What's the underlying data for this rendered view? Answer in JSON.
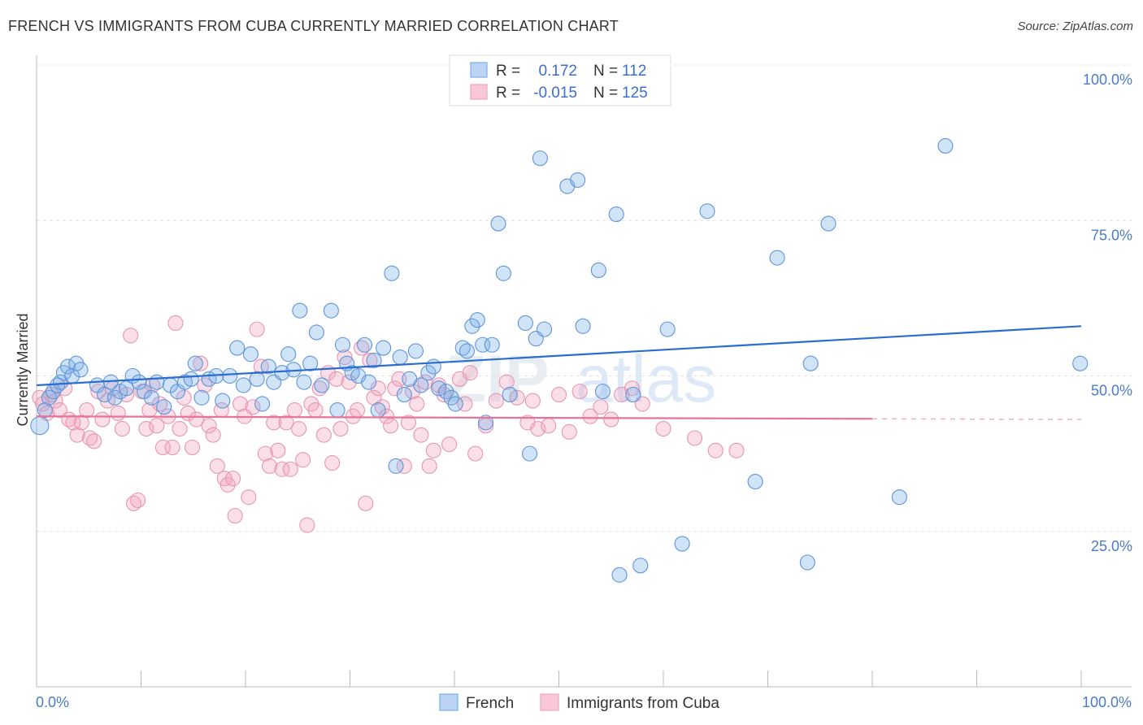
{
  "title": "FRENCH VS IMMIGRANTS FROM CUBA CURRENTLY MARRIED CORRELATION CHART",
  "source": "Source: ZipAtlas.com",
  "watermark": {
    "zip": "ZIP",
    "atlas": "atlas"
  },
  "colors": {
    "french": "#7aaee8",
    "cuba": "#f2a3bd",
    "french_line": "#2a6dd0",
    "cuba_line": "#e8739a"
  },
  "legend_top": [
    {
      "r_label": "R =",
      "r_value": "0.172",
      "n_label": "N =",
      "n_value": "112"
    },
    {
      "r_label": "R =",
      "r_value": "-0.015",
      "n_label": "N =",
      "n_value": "125"
    }
  ],
  "legend_bottom": [
    "French",
    "Immigrants from Cuba"
  ],
  "chart_data": {
    "type": "scatter",
    "title": "FRENCH VS IMMIGRANTS FROM CUBA CURRENTLY MARRIED CORRELATION CHART",
    "xlabel": "",
    "ylabel": "Currently Married",
    "xlim": [
      0,
      100
    ],
    "ylim": [
      0,
      100
    ],
    "x_tick_labels": [
      "0.0%",
      "100.0%"
    ],
    "y_tick_labels": [
      "100.0%",
      "75.0%",
      "50.0%",
      "25.0%"
    ],
    "y_ticks": [
      100,
      75,
      50,
      25
    ],
    "grid": true,
    "legend_position": "top-center",
    "series": [
      {
        "name": "French",
        "trend": {
          "x": [
            0,
            100
          ],
          "y": [
            48.5,
            58.0
          ]
        },
        "points": [
          [
            0.3,
            42.0
          ],
          [
            0.8,
            44.5
          ],
          [
            1.2,
            46.5
          ],
          [
            1.6,
            47.5
          ],
          [
            2.0,
            48.5
          ],
          [
            2.3,
            49.0
          ],
          [
            2.6,
            50.5
          ],
          [
            3.0,
            51.5
          ],
          [
            3.4,
            50.0
          ],
          [
            3.8,
            52.0
          ],
          [
            4.2,
            51.0
          ],
          [
            5.8,
            48.5
          ],
          [
            6.5,
            47.0
          ],
          [
            7.1,
            49.0
          ],
          [
            7.5,
            46.5
          ],
          [
            8.0,
            47.5
          ],
          [
            8.6,
            48.0
          ],
          [
            9.2,
            50.0
          ],
          [
            9.8,
            49.0
          ],
          [
            10.3,
            47.5
          ],
          [
            11.0,
            46.5
          ],
          [
            11.5,
            49.0
          ],
          [
            12.2,
            45.0
          ],
          [
            12.8,
            48.5
          ],
          [
            13.5,
            47.5
          ],
          [
            14.2,
            49.0
          ],
          [
            14.8,
            49.5
          ],
          [
            15.2,
            52.0
          ],
          [
            15.8,
            46.5
          ],
          [
            16.5,
            49.5
          ],
          [
            17.2,
            50.0
          ],
          [
            17.8,
            46.0
          ],
          [
            18.5,
            50.0
          ],
          [
            19.2,
            54.5
          ],
          [
            19.8,
            48.5
          ],
          [
            20.5,
            53.5
          ],
          [
            21.1,
            49.5
          ],
          [
            21.6,
            45.5
          ],
          [
            22.2,
            51.5
          ],
          [
            22.7,
            49.0
          ],
          [
            23.5,
            50.5
          ],
          [
            24.1,
            53.5
          ],
          [
            24.6,
            51.0
          ],
          [
            25.2,
            60.5
          ],
          [
            25.6,
            49.0
          ],
          [
            26.2,
            52.0
          ],
          [
            26.8,
            57.0
          ],
          [
            27.3,
            48.5
          ],
          [
            28.2,
            60.5
          ],
          [
            28.8,
            44.5
          ],
          [
            29.3,
            55.0
          ],
          [
            29.7,
            52.0
          ],
          [
            30.2,
            50.5
          ],
          [
            30.8,
            50.0
          ],
          [
            31.4,
            55.0
          ],
          [
            31.8,
            49.0
          ],
          [
            32.3,
            52.5
          ],
          [
            32.7,
            44.5
          ],
          [
            33.2,
            54.5
          ],
          [
            34.0,
            66.5
          ],
          [
            34.4,
            35.5
          ],
          [
            34.8,
            53.0
          ],
          [
            35.2,
            47.0
          ],
          [
            35.7,
            49.5
          ],
          [
            36.3,
            54.0
          ],
          [
            36.8,
            48.5
          ],
          [
            37.5,
            50.5
          ],
          [
            38.0,
            51.5
          ],
          [
            38.5,
            48.0
          ],
          [
            39.2,
            47.5
          ],
          [
            39.7,
            46.5
          ],
          [
            40.1,
            45.5
          ],
          [
            40.8,
            54.5
          ],
          [
            41.2,
            54.0
          ],
          [
            41.7,
            58.0
          ],
          [
            42.2,
            59.0
          ],
          [
            42.7,
            55.0
          ],
          [
            43.0,
            42.5
          ],
          [
            43.6,
            55.0
          ],
          [
            44.2,
            74.5
          ],
          [
            44.7,
            66.5
          ],
          [
            45.3,
            47.0
          ],
          [
            46.8,
            58.5
          ],
          [
            47.2,
            37.5
          ],
          [
            47.8,
            56.0
          ],
          [
            48.2,
            85.0
          ],
          [
            48.6,
            57.5
          ],
          [
            50.8,
            80.5
          ],
          [
            51.8,
            81.5
          ],
          [
            52.3,
            58.0
          ],
          [
            53.8,
            67.0
          ],
          [
            54.2,
            47.5
          ],
          [
            55.5,
            76.0
          ],
          [
            55.8,
            18.0
          ],
          [
            57.1,
            47.0
          ],
          [
            57.8,
            19.5
          ],
          [
            60.4,
            57.5
          ],
          [
            61.8,
            23.0
          ],
          [
            64.2,
            76.5
          ],
          [
            68.8,
            33.0
          ],
          [
            70.9,
            69.0
          ],
          [
            73.8,
            20.0
          ],
          [
            74.1,
            52.0
          ],
          [
            75.8,
            74.5
          ],
          [
            82.6,
            30.5
          ],
          [
            87.0,
            87.0
          ],
          [
            99.9,
            52.0
          ]
        ]
      },
      {
        "name": "Immigrants from Cuba",
        "trend": {
          "x": [
            0,
            80
          ],
          "y": [
            43.5,
            43.1
          ]
        },
        "points": [
          [
            0.3,
            46.5
          ],
          [
            0.6,
            45.5
          ],
          [
            1.0,
            44.0
          ],
          [
            1.4,
            47.0
          ],
          [
            1.8,
            46.0
          ],
          [
            2.2,
            44.5
          ],
          [
            2.7,
            48.0
          ],
          [
            3.1,
            43.0
          ],
          [
            3.5,
            42.5
          ],
          [
            3.9,
            40.5
          ],
          [
            4.3,
            42.5
          ],
          [
            4.8,
            44.5
          ],
          [
            5.1,
            40.0
          ],
          [
            5.5,
            39.5
          ],
          [
            5.9,
            47.5
          ],
          [
            6.3,
            43.0
          ],
          [
            6.8,
            46.0
          ],
          [
            7.3,
            48.0
          ],
          [
            7.8,
            44.0
          ],
          [
            8.2,
            41.5
          ],
          [
            8.6,
            47.0
          ],
          [
            9.0,
            56.5
          ],
          [
            9.3,
            29.5
          ],
          [
            9.7,
            30.0
          ],
          [
            10.1,
            47.5
          ],
          [
            10.5,
            41.5
          ],
          [
            10.8,
            44.5
          ],
          [
            11.1,
            48.5
          ],
          [
            11.5,
            42.0
          ],
          [
            11.8,
            45.5
          ],
          [
            12.1,
            38.5
          ],
          [
            12.6,
            43.5
          ],
          [
            13.0,
            38.5
          ],
          [
            13.3,
            58.5
          ],
          [
            13.7,
            41.5
          ],
          [
            14.1,
            46.5
          ],
          [
            14.5,
            44.0
          ],
          [
            14.9,
            38.5
          ],
          [
            15.3,
            43.0
          ],
          [
            15.7,
            52.0
          ],
          [
            16.1,
            48.5
          ],
          [
            16.5,
            42.0
          ],
          [
            16.9,
            40.5
          ],
          [
            17.3,
            35.5
          ],
          [
            17.7,
            44.5
          ],
          [
            18.0,
            33.5
          ],
          [
            18.3,
            32.5
          ],
          [
            18.8,
            33.5
          ],
          [
            19.0,
            27.5
          ],
          [
            19.5,
            45.5
          ],
          [
            19.9,
            43.5
          ],
          [
            20.3,
            30.5
          ],
          [
            20.7,
            45.0
          ],
          [
            21.1,
            57.5
          ],
          [
            21.5,
            51.5
          ],
          [
            21.9,
            37.5
          ],
          [
            22.3,
            35.5
          ],
          [
            22.7,
            42.5
          ],
          [
            23.1,
            38.0
          ],
          [
            23.5,
            35.0
          ],
          [
            23.9,
            42.5
          ],
          [
            24.3,
            35.0
          ],
          [
            24.7,
            44.5
          ],
          [
            25.1,
            41.5
          ],
          [
            25.5,
            36.5
          ],
          [
            25.9,
            26.0
          ],
          [
            26.3,
            45.5
          ],
          [
            26.7,
            44.5
          ],
          [
            27.1,
            48.0
          ],
          [
            27.5,
            40.5
          ],
          [
            27.9,
            50.5
          ],
          [
            28.3,
            36.0
          ],
          [
            28.7,
            49.5
          ],
          [
            29.1,
            41.5
          ],
          [
            29.5,
            53.0
          ],
          [
            29.9,
            49.0
          ],
          [
            30.3,
            43.5
          ],
          [
            30.7,
            44.5
          ],
          [
            31.1,
            54.5
          ],
          [
            31.5,
            29.5
          ],
          [
            31.9,
            52.5
          ],
          [
            32.3,
            46.5
          ],
          [
            32.7,
            48.0
          ],
          [
            33.1,
            45.0
          ],
          [
            33.5,
            43.5
          ],
          [
            33.9,
            42.0
          ],
          [
            34.3,
            48.0
          ],
          [
            34.7,
            49.5
          ],
          [
            35.2,
            35.5
          ],
          [
            35.6,
            42.5
          ],
          [
            36.0,
            47.5
          ],
          [
            36.4,
            45.5
          ],
          [
            36.8,
            40.5
          ],
          [
            37.2,
            49.0
          ],
          [
            37.6,
            35.5
          ],
          [
            38.0,
            38.0
          ],
          [
            38.5,
            48.5
          ],
          [
            39.0,
            47.0
          ],
          [
            39.5,
            39.0
          ],
          [
            40.5,
            49.5
          ],
          [
            41.0,
            45.5
          ],
          [
            41.5,
            50.5
          ],
          [
            42.0,
            37.5
          ],
          [
            43.0,
            42.0
          ],
          [
            44.0,
            46.0
          ],
          [
            45.0,
            49.0
          ],
          [
            46.0,
            46.5
          ],
          [
            47.0,
            42.5
          ],
          [
            47.5,
            46.0
          ],
          [
            48.0,
            41.5
          ],
          [
            49.0,
            42.0
          ],
          [
            50.0,
            47.0
          ],
          [
            51.0,
            41.0
          ],
          [
            52.0,
            47.5
          ],
          [
            53.0,
            43.5
          ],
          [
            54.0,
            45.0
          ],
          [
            55.0,
            43.0
          ],
          [
            56.0,
            47.0
          ],
          [
            57.0,
            48.0
          ],
          [
            58.0,
            45.5
          ],
          [
            60.0,
            41.5
          ],
          [
            63.0,
            40.0
          ],
          [
            65.0,
            38.0
          ],
          [
            67.0,
            38.0
          ]
        ]
      }
    ]
  }
}
